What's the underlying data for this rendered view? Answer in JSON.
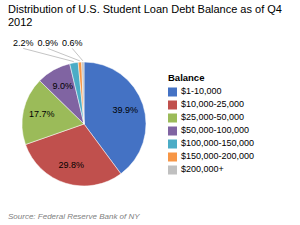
{
  "chart_data": {
    "type": "pie",
    "title": "Distribution of U.S. Student Loan Debt Balance as of Q4 2012",
    "annotations": [
      "Source:  Federal Reserve Bank of NY"
    ],
    "legend_title": "Balance",
    "categories": [
      "$1-10,000",
      "$10,000-25,000",
      "$25,000-50,000",
      "$50,000-100,000",
      "$100,000-150,000",
      "$150,000-200,000",
      "$200,000+"
    ],
    "values": [
      39.9,
      29.8,
      17.7,
      9.0,
      2.2,
      0.9,
      0.6
    ],
    "value_labels": [
      "39.9%",
      "29.8%",
      "17.7%",
      "9.0%",
      "2.2%",
      "0.9%",
      "0.6%"
    ],
    "colors": [
      "#4472C4",
      "#C0504D",
      "#9BBB59",
      "#8064A2",
      "#4BACC6",
      "#F79646",
      "#C0C0C0"
    ],
    "data_labels": true,
    "legend": "right"
  }
}
